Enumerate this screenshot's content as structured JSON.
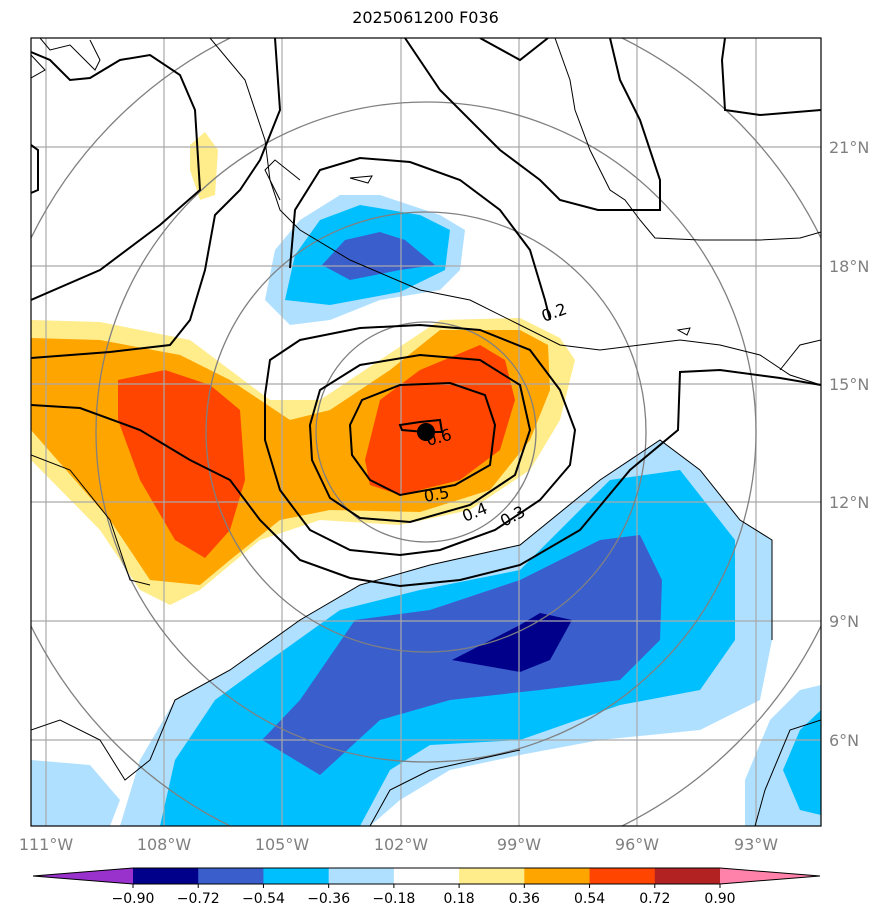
{
  "title": "2025061200 F036",
  "lat_labels": [
    "21°N",
    "18°N",
    "15°N",
    "12°N",
    "9°N",
    "6°N"
  ],
  "lon_labels": [
    "111°W",
    "108°W",
    "105°W",
    "102°W",
    "99°W",
    "96°W",
    "93°W"
  ],
  "contour_labels": [
    "0.2",
    "0.3",
    "0.4",
    "0.5",
    "0.6"
  ],
  "colorbar": {
    "tick_labels": [
      "−0.90",
      "−0.72",
      "−0.54",
      "−0.36",
      "−0.18",
      "0.18",
      "0.36",
      "0.54",
      "0.72",
      "0.90"
    ],
    "colors": [
      "#9932cc",
      "#00008b",
      "#3a5fcd",
      "#00bfff",
      "#b0e0ff",
      "#ffffff",
      "#ffec8b",
      "#ffa500",
      "#ff4500",
      "#b22222",
      "#ff82ab"
    ]
  },
  "colors": {
    "gridline": "#a9a9a9",
    "range_ring": "#808080",
    "center_marker": "#000000"
  }
}
